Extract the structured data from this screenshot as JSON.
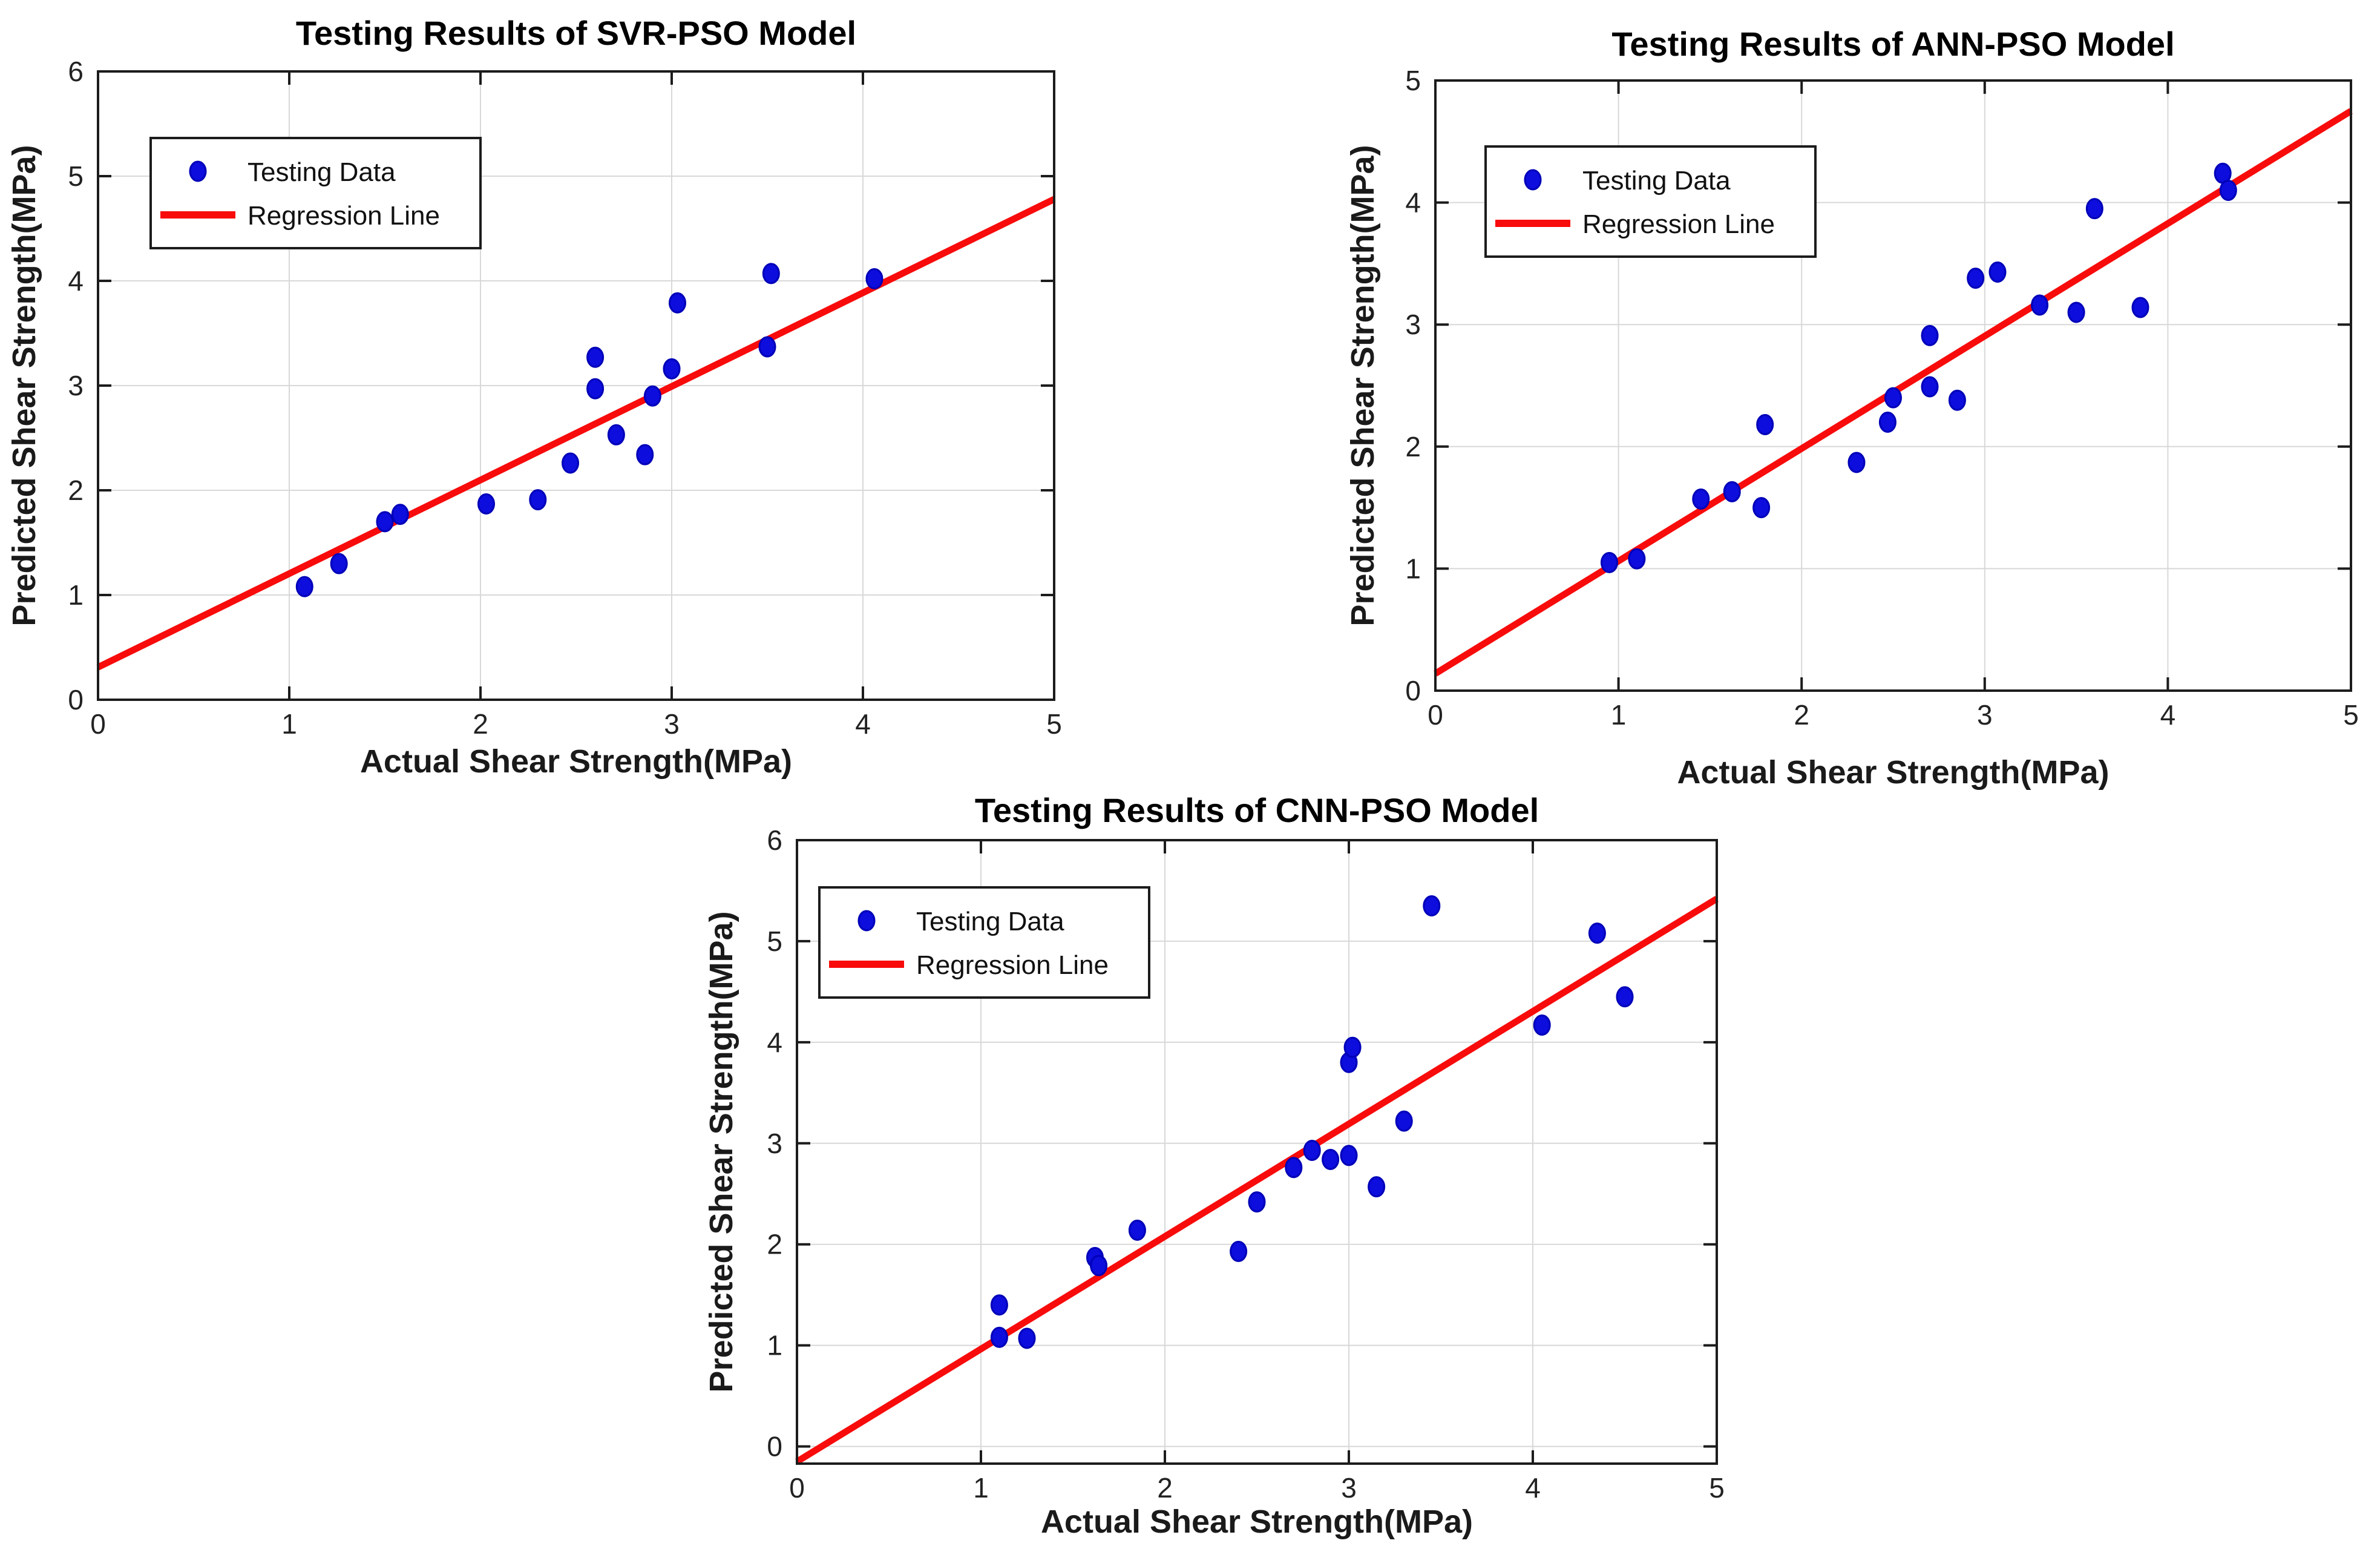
{
  "page": {
    "background": "#ffffff"
  },
  "legend": {
    "testing_data": "Testing Data",
    "regression_line": "Regression Line"
  },
  "colors": {
    "marker_fill": "#0d0ddd",
    "marker_edge": "#0000b8",
    "regression_line": "#f80b0b",
    "grid": "#d8d8d8",
    "axis": "#1c1c1c",
    "tick_text": "#222222",
    "plot_background": "#ffffff",
    "legend_border": "#1c1c1c"
  },
  "chart_data": [
    {
      "type": "scatter",
      "title": "Testing Results of SVR-PSO Model",
      "xlabel": "Actual Shear Strength(MPa)",
      "ylabel": "Predicted Shear Strength(MPa)",
      "xlim": [
        0,
        5
      ],
      "ylim": [
        0,
        6
      ],
      "x_ticks": [
        0,
        1,
        2,
        3,
        4,
        5
      ],
      "y_ticks": [
        0,
        1,
        2,
        3,
        4,
        5,
        6
      ],
      "grid": true,
      "legend_position": "top-left",
      "series": [
        {
          "name": "Testing Data",
          "type": "scatter",
          "points": [
            [
              1.08,
              1.08
            ],
            [
              1.26,
              1.3
            ],
            [
              1.5,
              1.7
            ],
            [
              1.58,
              1.77
            ],
            [
              2.03,
              1.87
            ],
            [
              2.3,
              1.91
            ],
            [
              2.47,
              2.26
            ],
            [
              2.6,
              2.97
            ],
            [
              2.6,
              3.27
            ],
            [
              2.71,
              2.53
            ],
            [
              2.86,
              2.34
            ],
            [
              2.9,
              2.9
            ],
            [
              3.0,
              3.16
            ],
            [
              3.03,
              3.79
            ],
            [
              3.5,
              3.37
            ],
            [
              3.52,
              4.07
            ],
            [
              4.06,
              4.02
            ]
          ]
        },
        {
          "name": "Regression Line",
          "type": "line",
          "points": [
            [
              0,
              0.31
            ],
            [
              5,
              4.78
            ]
          ]
        }
      ]
    },
    {
      "type": "scatter",
      "title": "Testing Results of ANN-PSO Model",
      "xlabel": "Actual Shear Strength(MPa)",
      "ylabel": "Predicted Shear Strength(MPa)",
      "xlim": [
        0,
        5
      ],
      "ylim": [
        0,
        5
      ],
      "x_ticks": [
        0,
        1,
        2,
        3,
        4,
        5
      ],
      "y_ticks": [
        0,
        1,
        2,
        3,
        4,
        5
      ],
      "grid": true,
      "legend_position": "top-left",
      "series": [
        {
          "name": "Testing Data",
          "type": "scatter",
          "points": [
            [
              0.95,
              1.05
            ],
            [
              1.1,
              1.08
            ],
            [
              1.45,
              1.57
            ],
            [
              1.62,
              1.63
            ],
            [
              1.78,
              1.5
            ],
            [
              1.8,
              2.18
            ],
            [
              2.3,
              1.87
            ],
            [
              2.47,
              2.2
            ],
            [
              2.5,
              2.4
            ],
            [
              2.7,
              2.49
            ],
            [
              2.7,
              2.91
            ],
            [
              2.85,
              2.38
            ],
            [
              2.95,
              3.38
            ],
            [
              3.07,
              3.43
            ],
            [
              3.3,
              3.16
            ],
            [
              3.5,
              3.1
            ],
            [
              3.6,
              3.95
            ],
            [
              3.85,
              3.14
            ],
            [
              4.3,
              4.24
            ],
            [
              4.33,
              4.1
            ]
          ]
        },
        {
          "name": "Regression Line",
          "type": "line",
          "points": [
            [
              0,
              0.14
            ],
            [
              5,
              4.75
            ]
          ]
        }
      ]
    },
    {
      "type": "scatter",
      "title": "Testing Results of CNN-PSO Model",
      "xlabel": "Actual Shear Strength(MPa)",
      "ylabel": "Predicted Shear Strength(MPa)",
      "xlim": [
        0,
        5
      ],
      "ylim": [
        -0.17,
        6
      ],
      "x_ticks": [
        0,
        1,
        2,
        3,
        4,
        5
      ],
      "y_ticks": [
        0,
        1,
        2,
        3,
        4,
        5,
        6
      ],
      "grid": true,
      "legend_position": "top-left",
      "series": [
        {
          "name": "Testing Data",
          "type": "scatter",
          "points": [
            [
              1.1,
              1.4
            ],
            [
              1.1,
              1.08
            ],
            [
              1.25,
              1.07
            ],
            [
              1.62,
              1.87
            ],
            [
              1.64,
              1.79
            ],
            [
              1.85,
              2.14
            ],
            [
              2.4,
              1.93
            ],
            [
              2.5,
              2.42
            ],
            [
              2.7,
              2.76
            ],
            [
              2.8,
              2.93
            ],
            [
              2.9,
              2.84
            ],
            [
              3.0,
              2.88
            ],
            [
              3.0,
              3.8
            ],
            [
              3.02,
              3.95
            ],
            [
              3.15,
              2.57
            ],
            [
              3.3,
              3.22
            ],
            [
              3.45,
              5.35
            ],
            [
              4.05,
              4.17
            ],
            [
              4.35,
              5.08
            ],
            [
              4.5,
              4.45
            ]
          ]
        },
        {
          "name": "Regression Line",
          "type": "line",
          "points": [
            [
              0,
              -0.15
            ],
            [
              5,
              5.42
            ]
          ]
        }
      ]
    }
  ]
}
